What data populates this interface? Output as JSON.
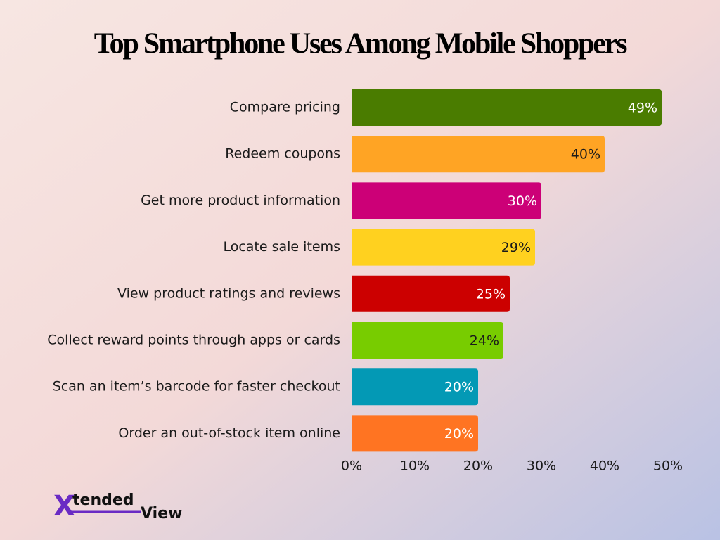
{
  "chart_data": {
    "type": "bar",
    "orientation": "horizontal",
    "title": "Top Smartphone Uses Among Mobile Shoppers",
    "categories": [
      "Compare pricing",
      "Redeem coupons",
      "Get more product information",
      "Locate sale items",
      "View product ratings and reviews",
      "Collect reward points through apps or cards",
      "Scan an item’s barcode for faster checkout",
      "Order an out-of-stock item online"
    ],
    "values": [
      49,
      40,
      30,
      29,
      25,
      24,
      20,
      20
    ],
    "value_labels": [
      "49%",
      "40%",
      "30%",
      "29%",
      "25%",
      "24%",
      "20%",
      "20%"
    ],
    "colors": [
      "#4a7c00",
      "#ffa424",
      "#cc0077",
      "#ffd11f",
      "#cc0000",
      "#78cc00",
      "#0399b5",
      "#ff7422"
    ],
    "xlim": [
      0,
      50
    ],
    "xticks": [
      {
        "value": 0,
        "label": "0%"
      },
      {
        "value": 10,
        "label": "10%"
      },
      {
        "value": 20,
        "label": "20%"
      },
      {
        "value": 30,
        "label": "30%"
      },
      {
        "value": 40,
        "label": "40%"
      },
      {
        "value": 50,
        "label": "50%"
      }
    ],
    "grid": false
  },
  "logo": {
    "mark": "X",
    "word1": "tended",
    "word2": "View"
  }
}
